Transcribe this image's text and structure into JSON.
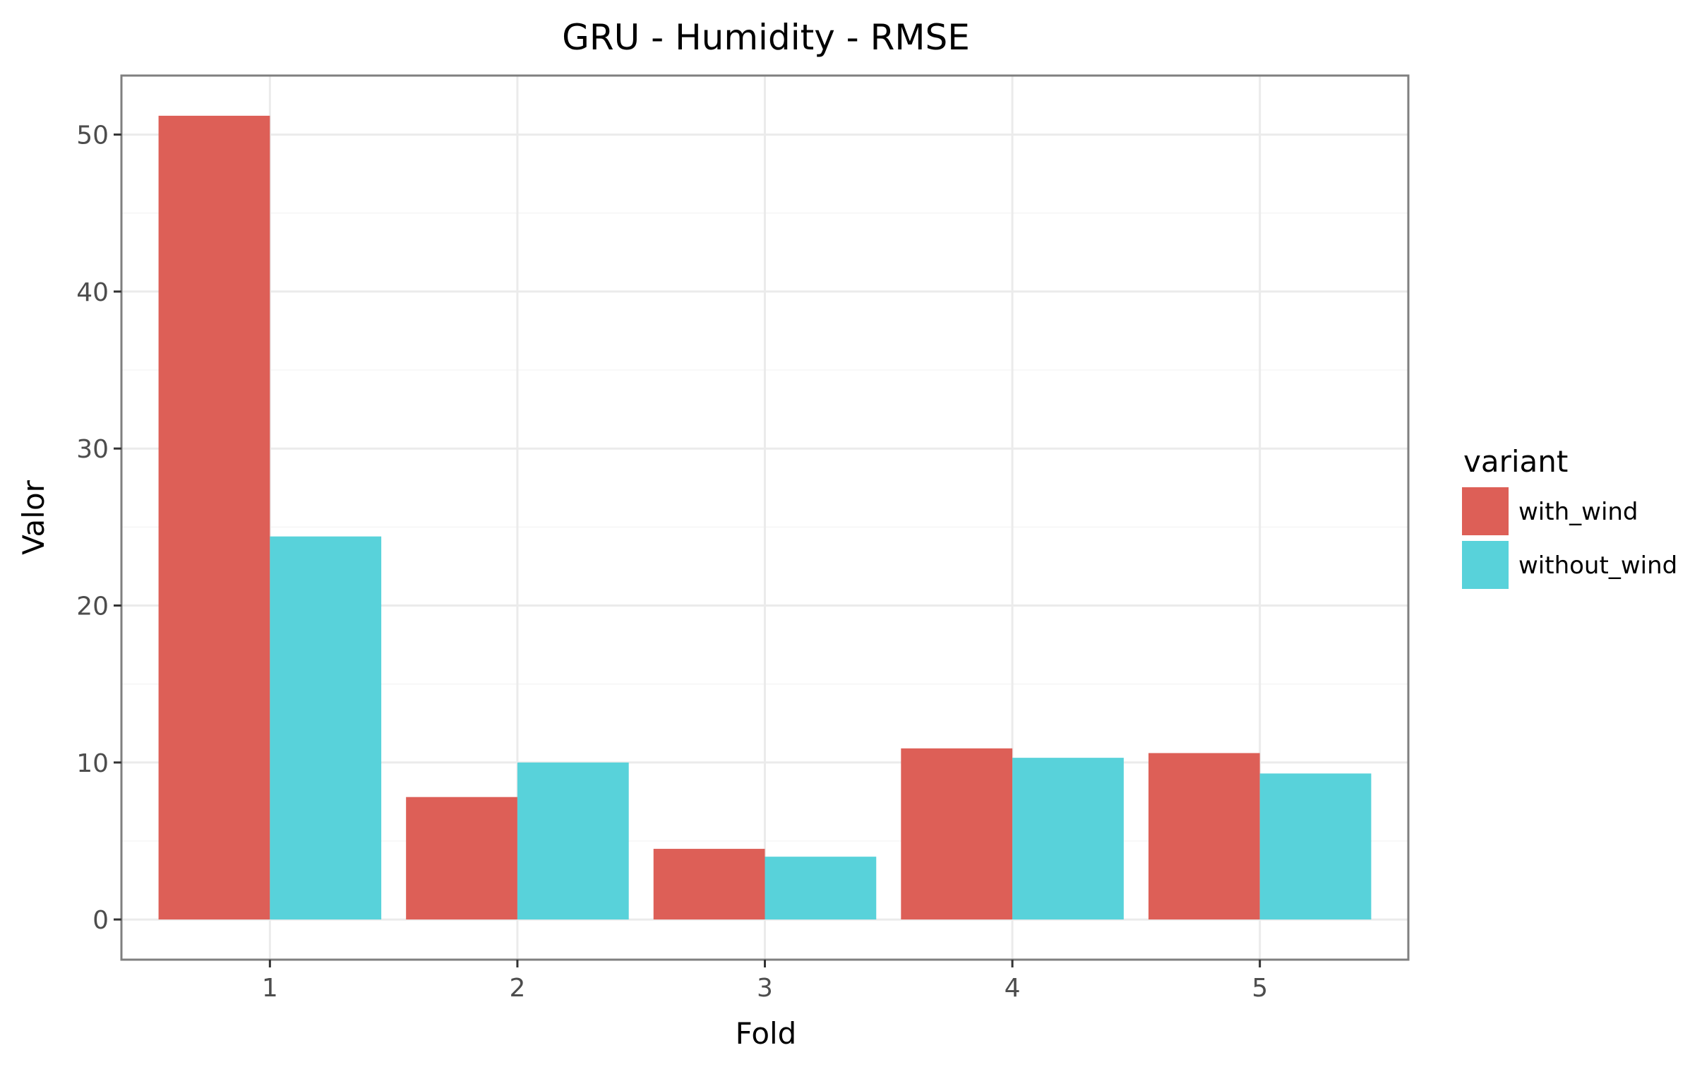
{
  "chart_data": {
    "type": "bar",
    "title": "GRU - Humidity - RMSE",
    "xlabel": "Fold",
    "ylabel": "Valor",
    "categories": [
      "1",
      "2",
      "3",
      "4",
      "5"
    ],
    "series": [
      {
        "name": "with_wind",
        "color": "#dd5f57",
        "values": [
          51.2,
          7.8,
          4.5,
          10.9,
          10.6
        ]
      },
      {
        "name": "without_wind",
        "color": "#58d2da",
        "values": [
          24.4,
          10.0,
          4.0,
          10.3,
          9.3
        ]
      }
    ],
    "ylim": [
      -2.56,
      53.76
    ],
    "yticks": [
      0,
      10,
      20,
      30,
      40,
      50
    ],
    "grid": true,
    "legend": {
      "title": "variant",
      "position": "right"
    }
  }
}
